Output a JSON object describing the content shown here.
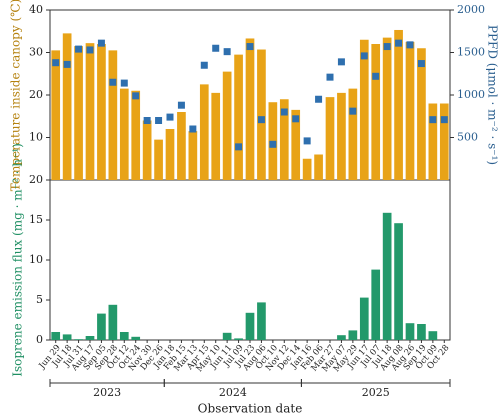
{
  "chart_data": [
    {
      "type": "bar",
      "ylabel": "Temperature inside canopy (℃)",
      "ylabel_color": "#b5820f",
      "y2label": "PPFD (μmol · m⁻² · s⁻¹)",
      "y2label_color": "#2b5f8f",
      "ylim": [
        0,
        40
      ],
      "yticks": [
        10,
        20,
        30,
        40
      ],
      "y2lim": [
        0,
        2000
      ],
      "y2ticks": [
        500,
        1000,
        1500,
        2000
      ],
      "series": [
        {
          "color": "#e8a317",
          "values": [
            30.5,
            34.5,
            31.5,
            32.2,
            32,
            30.5,
            21.5,
            21,
            14,
            9.5,
            12,
            16,
            11.5,
            22.5,
            20.5,
            25.5,
            29.5,
            33.3,
            30.7,
            18.3,
            19,
            16.5,
            5,
            6,
            19.5,
            20.5,
            21.5,
            33,
            32,
            33.5,
            35.3,
            32.5,
            31,
            18,
            18
          ]
        },
        {
          "type": "scatter",
          "axis": "y2",
          "color": "#2e6fae",
          "values": [
            1380,
            1360,
            1540,
            1530,
            1610,
            1150,
            1140,
            990,
            700,
            700,
            740,
            880,
            600,
            1350,
            1550,
            1510,
            390,
            1570,
            710,
            420,
            800,
            720,
            460,
            950,
            1210,
            1390,
            810,
            1460,
            1220,
            1570,
            1610,
            1590,
            1370,
            710,
            710
          ]
        }
      ]
    },
    {
      "type": "bar",
      "ylabel": "Isoprene emission flux (mg · m⁻² · h⁻¹)",
      "ylabel_color": "#1f8f63",
      "xlabel": "Observation date",
      "ylim": [
        0,
        20
      ],
      "yticks": [
        0,
        5,
        10,
        15,
        20
      ],
      "categories": [
        "Jun 29",
        "Jul 18",
        "Jul 31",
        "Aug 17",
        "Sep 05",
        "Sep 28",
        "Oct 12",
        "Oct 24",
        "Nov 30",
        "Dec 26",
        "Jan 18",
        "Feb 15",
        "Mar 13",
        "Apr 15",
        "May 10",
        "Jun 11",
        "Jul 09",
        "Jul 23",
        "Aug 06",
        "Oct 10",
        "Nov 12",
        "Dec 14",
        "Jan 16",
        "Feb 06",
        "Mar 27",
        "May 07",
        "May 29",
        "Jun 17",
        "Jul 07",
        "Jul 18",
        "Aug 08",
        "Aug 26",
        "Sep 19",
        "Oct 09",
        "Oct 28"
      ],
      "groups": [
        {
          "label": "2023",
          "count": 10
        },
        {
          "label": "2024",
          "count": 12
        },
        {
          "label": "2025",
          "count": 13
        }
      ],
      "series": [
        {
          "color": "#23996b",
          "values": [
            1.0,
            0.7,
            0.1,
            0.5,
            3.3,
            4.4,
            1.0,
            0.4,
            0,
            0,
            0,
            0,
            0,
            0,
            0,
            0.9,
            0.2,
            3.4,
            4.7,
            0,
            0,
            0,
            0,
            0,
            0,
            0.6,
            1.2,
            5.3,
            8.8,
            15.9,
            14.6,
            2.1,
            2.0,
            1.1,
            0
          ]
        }
      ]
    }
  ]
}
